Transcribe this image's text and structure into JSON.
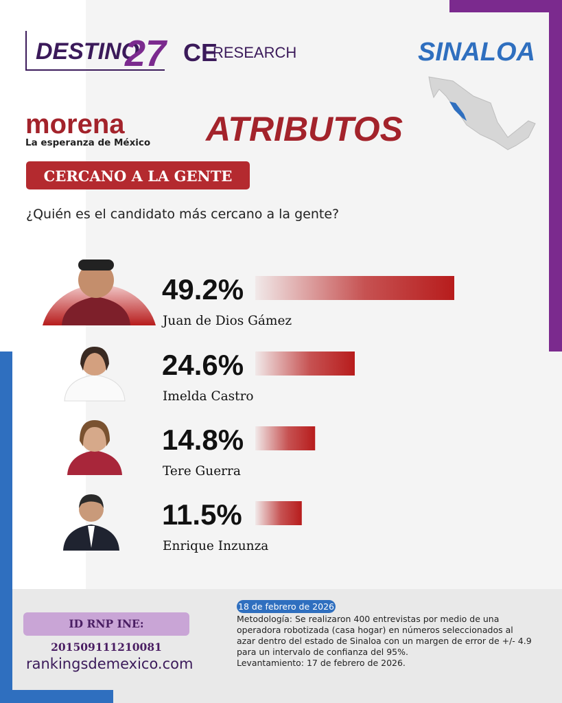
{
  "header": {
    "brand": "DESTINO",
    "brand_number": "27",
    "partner_prefix": "CE",
    "partner": "RESEARCH",
    "state": "SINALOA",
    "party": "morena",
    "party_tagline": "La esperanza de México",
    "section": "ATRIBUTOS",
    "attribute": "CERCANO A LA GENTE",
    "question": "¿Quién es el candidato más cercano a la gente?"
  },
  "chart_data": {
    "type": "bar",
    "categories": [
      "Juan de Dios Gámez",
      "Imelda Castro",
      "Tere Guerra",
      "Enrique Inzunza"
    ],
    "values": [
      49.2,
      24.6,
      14.8,
      11.5
    ],
    "value_labels": [
      "49.2%",
      "24.6%",
      "14.8%",
      "11.5%"
    ],
    "color": "#b71c1c"
  },
  "footer": {
    "registry": "ID RNP INE: 201509111210081",
    "website": "rankingsdemexico.com",
    "date": "18 de febrero de 2026",
    "methodology": "Metodología: Se realizaron 400 entrevistas por medio de una operadora robotizada (casa hogar) en números seleccionados al azar dentro del estado de Sinaloa con un margen de error de +/- 4.9 para un intervalo de confianza del 95%.",
    "fieldwork": "Levantamiento: 17 de febrero de 2026."
  }
}
